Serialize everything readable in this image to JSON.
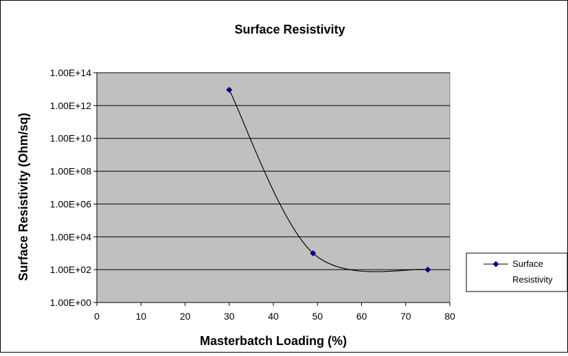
{
  "chart_data": {
    "type": "line",
    "title": "Surface Resistivity",
    "xlabel": "Masterbatch Loading (%)",
    "ylabel": "Surface Resistivity (Ohm/sq)",
    "xlim": [
      0,
      80
    ],
    "ylim": [
      1,
      100000000000000
    ],
    "y_scale": "log",
    "x_ticks": [
      0,
      10,
      20,
      30,
      40,
      50,
      60,
      70,
      80
    ],
    "x_tick_labels": [
      "0",
      "10",
      "20",
      "30",
      "40",
      "50",
      "60",
      "70",
      "80"
    ],
    "y_ticks": [
      1,
      100,
      10000,
      1000000,
      100000000,
      10000000000,
      1000000000000,
      100000000000000
    ],
    "y_tick_labels": [
      "1.00E+00",
      "1.00E+02",
      "1.00E+04",
      "1.00E+06",
      "1.00E+08",
      "1.00E+10",
      "1.00E+12",
      "1.00E+14"
    ],
    "grid": true,
    "smooth": true,
    "legend": {
      "position": "right",
      "label_lines": [
        "Surface",
        "Resistivity"
      ]
    },
    "series": [
      {
        "name": "Surface Resistivity",
        "color": "#000080",
        "line_color": "#000000",
        "marker": "diamond",
        "x": [
          30,
          49,
          75
        ],
        "y": [
          9000000000000,
          1000,
          100
        ]
      }
    ],
    "colors": {
      "plot_background": "#c0c0c0",
      "chart_background": "#ffffff",
      "gridline": "#000000"
    }
  }
}
